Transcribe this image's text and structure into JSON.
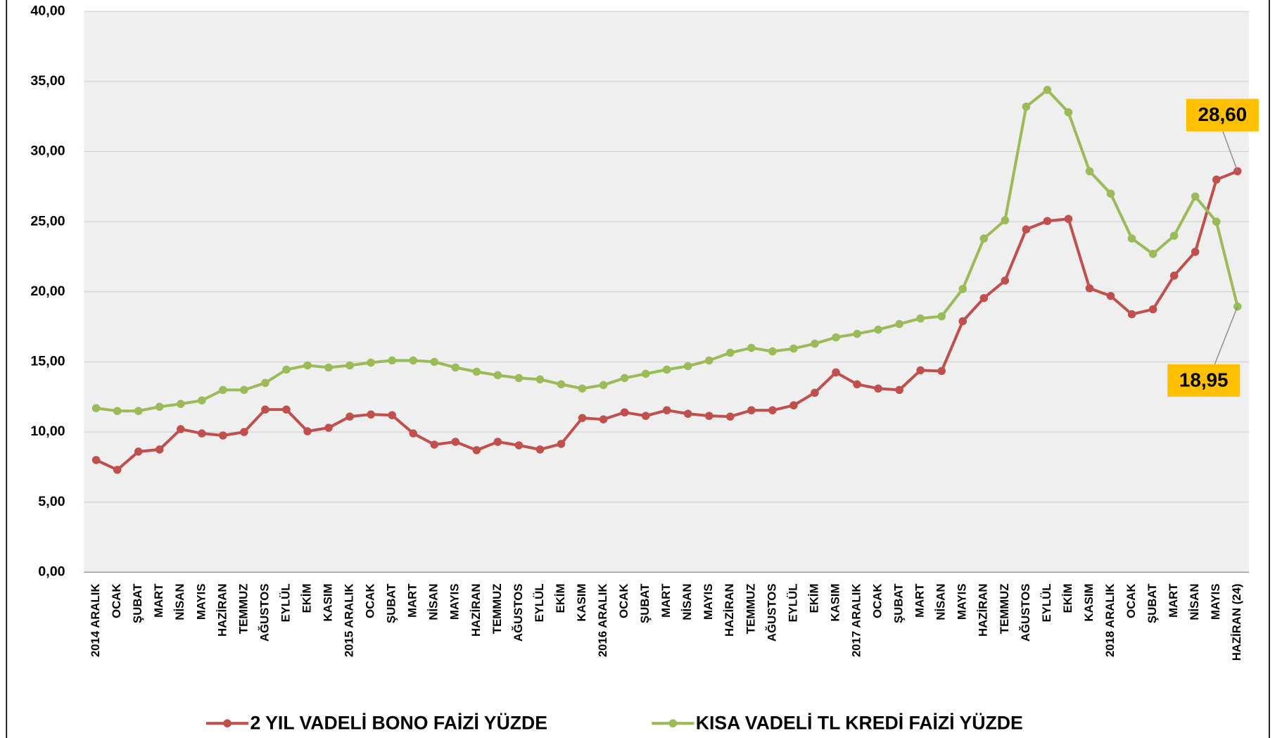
{
  "chart_data": {
    "type": "line",
    "categories": [
      "2014 ARALIK",
      "OCAK",
      "ŞUBAT",
      "MART",
      "NİSAN",
      "MAYIS",
      "HAZİRAN",
      "TEMMUZ",
      "AĞUSTOS",
      "EYLÜL",
      "EKİM",
      "KASIM",
      "2015 ARALIK",
      "OCAK",
      "ŞUBAT",
      "MART",
      "NİSAN",
      "MAYIS",
      "HAZİRAN",
      "TEMMUZ",
      "AĞUSTOS",
      "EYLÜL",
      "EKİM",
      "KASIM",
      "2016 ARALIK",
      "OCAK",
      "ŞUBAT",
      "MART",
      "NİSAN",
      "MAYIS",
      "HAZİRAN",
      "TEMMUZ",
      "AĞUSTOS",
      "EYLÜL",
      "EKİM",
      "KASIM",
      "2017 ARALIK",
      "OCAK",
      "ŞUBAT",
      "MART",
      "NİSAN",
      "MAYIS",
      "HAZİRAN",
      "TEMMUZ",
      "AĞUSTOS",
      "EYLÜL",
      "EKİM",
      "KASIM",
      "2018 ARALIK",
      "OCAK",
      "ŞUBAT",
      "MART",
      "NİSAN",
      "MAYIS",
      "HAZİRAN (24)"
    ],
    "series": [
      {
        "name": "2 YIL VADELİ BONO FAİZİ YÜZDE",
        "color": "#c0504d",
        "values": [
          8.0,
          7.3,
          8.6,
          8.75,
          10.2,
          9.9,
          9.75,
          10.0,
          11.6,
          11.6,
          10.05,
          10.3,
          11.1,
          11.25,
          11.2,
          9.9,
          9.1,
          9.3,
          8.7,
          9.3,
          9.05,
          8.75,
          9.15,
          11.0,
          10.9,
          11.4,
          11.15,
          11.55,
          11.3,
          11.15,
          11.1,
          11.55,
          11.55,
          11.9,
          12.8,
          14.25,
          13.4,
          13.1,
          13.0,
          14.4,
          14.35,
          17.9,
          19.55,
          20.8,
          24.45,
          25.05,
          25.2,
          20.25,
          19.7,
          18.4,
          18.75,
          21.15,
          22.85,
          28.0,
          28.6
        ],
        "value_labels": [
          null,
          null,
          null,
          null,
          null,
          null,
          null,
          null,
          null,
          null,
          null,
          null,
          null,
          null,
          null,
          null,
          null,
          null,
          null,
          null,
          null,
          null,
          null,
          null,
          null,
          null,
          null,
          null,
          null,
          null,
          null,
          null,
          null,
          null,
          null,
          null,
          null,
          null,
          null,
          null,
          null,
          null,
          null,
          null,
          null,
          null,
          null,
          null,
          null,
          null,
          null,
          null,
          null,
          null,
          "28,60"
        ]
      },
      {
        "name": "KISA VADELİ TL KREDİ FAİZİ YÜZDE",
        "color": "#9bbb59",
        "values": [
          11.7,
          11.5,
          11.5,
          11.8,
          12.0,
          12.25,
          13.0,
          13.0,
          13.5,
          14.45,
          14.75,
          14.6,
          14.75,
          14.95,
          15.1,
          15.1,
          15.0,
          14.6,
          14.3,
          14.05,
          13.85,
          13.75,
          13.4,
          13.1,
          13.35,
          13.85,
          14.15,
          14.45,
          14.7,
          15.1,
          15.65,
          16.0,
          15.75,
          15.95,
          16.3,
          16.75,
          17.0,
          17.3,
          17.7,
          18.1,
          18.25,
          20.2,
          23.8,
          25.1,
          33.2,
          34.4,
          32.8,
          28.6,
          27.0,
          23.8,
          22.7,
          24.0,
          26.8,
          25.0,
          18.95
        ],
        "value_labels": [
          null,
          null,
          null,
          null,
          null,
          null,
          null,
          null,
          null,
          null,
          null,
          null,
          null,
          null,
          null,
          null,
          null,
          null,
          null,
          null,
          null,
          null,
          null,
          null,
          null,
          null,
          null,
          null,
          null,
          null,
          null,
          null,
          null,
          null,
          null,
          null,
          null,
          null,
          null,
          null,
          null,
          null,
          null,
          null,
          null,
          null,
          null,
          null,
          null,
          null,
          null,
          null,
          null,
          null,
          "18,95"
        ]
      }
    ],
    "ylim": [
      0,
      40
    ],
    "yticks": [
      {
        "value": 0,
        "label": "0,00"
      },
      {
        "value": 5,
        "label": "5,00"
      },
      {
        "value": 10,
        "label": "10,00"
      },
      {
        "value": 15,
        "label": "15,00"
      },
      {
        "value": 20,
        "label": "20,00"
      },
      {
        "value": 25,
        "label": "25,00"
      },
      {
        "value": 30,
        "label": "30,00"
      },
      {
        "value": 35,
        "label": "35,00"
      },
      {
        "value": 40,
        "label": "40,00"
      }
    ],
    "grid": true,
    "legend": "bottom"
  }
}
